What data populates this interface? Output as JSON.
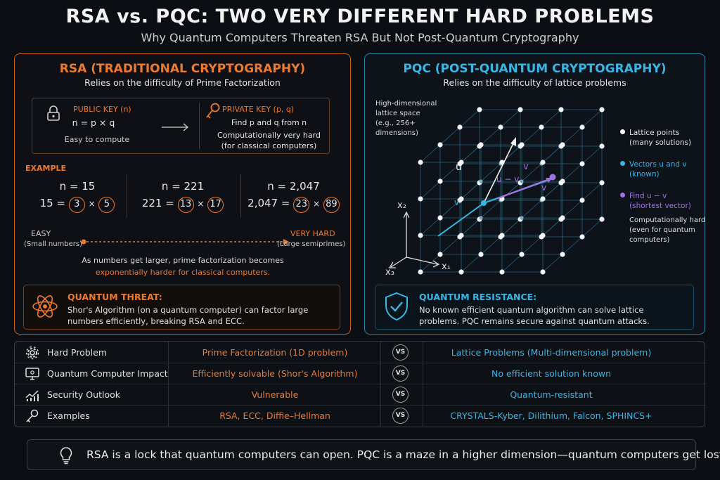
{
  "header": {
    "title": "RSA vs. PQC: TWO VERY DIFFERENT HARD PROBLEMS",
    "subtitle": "Why Quantum Computers Threaten RSA But Not Post-Quantum Cryptography"
  },
  "rsa": {
    "title": "RSA (TRADITIONAL CRYPTOGRAPHY)",
    "description": "Relies on the difficulty of Prime Factorization",
    "public_key": {
      "label": "PUBLIC KEY (n)",
      "formula": "n = p × q",
      "note": "Easy to compute"
    },
    "private_key": {
      "label": "PRIVATE KEY (p, q)",
      "line1": "Find p and q from n",
      "line2": "Computationally very hard",
      "line3": "(for classical computers)"
    },
    "example_label": "EXAMPLE",
    "examples": [
      {
        "n": "n = 15",
        "lhs": "15 =",
        "p": "3",
        "q": "5"
      },
      {
        "n": "n = 221",
        "lhs": "221 =",
        "p": "13",
        "q": "17"
      },
      {
        "n": "n = 2,047",
        "lhs": "2,047 =",
        "p": "23",
        "q": "89"
      }
    ],
    "times": "×",
    "scale": {
      "easy": "EASY",
      "easy_note": "(Small numbers)",
      "hard": "VERY HARD",
      "hard_note": "(Large semiprimes)"
    },
    "growth_line1": "As numbers get larger, prime factorization becomes",
    "growth_line2": "exponentially harder for classical computers.",
    "threat": {
      "title": "QUANTUM THREAT:",
      "line1": "Shor's Algorithm (on a quantum computer) can factor large",
      "line2": "numbers efficiently, breaking RSA and ECC."
    }
  },
  "pqc": {
    "title": "PQC (POST-QUANTUM CRYPTOGRAPHY)",
    "description": "Relies on the difficulty of lattice problems",
    "space_note": [
      "High-dimensional",
      "lattice space",
      "(e.g., 256+",
      "dimensions)"
    ],
    "vectors": {
      "u": "u",
      "v": "v",
      "u_minus_v": "u − v",
      "v2": "v",
      "v_small": "v"
    },
    "axes": {
      "x1": "x₁",
      "x2": "x₂",
      "x3": "x₃"
    },
    "legend": [
      {
        "line1": "Lattice points",
        "line2": "(many solutions)",
        "color": "#ffffff"
      },
      {
        "line1": "Vectors u and v",
        "line2": "(known)",
        "color": "#39b6e6"
      },
      {
        "line1": "Find u − v",
        "line2": "(shortest vector)",
        "color": "#a072e0"
      }
    ],
    "hardness": [
      "Computationally hard",
      "(even for quantum",
      "computers)"
    ],
    "resistance": {
      "title": "QUANTUM RESISTANCE:",
      "line1": "No known efficient quantum algorithm can solve lattice",
      "line2": "problems. PQC remains secure against quantum attacks."
    }
  },
  "comparison": {
    "vs": "VS",
    "rows": [
      {
        "label": "Hard Problem",
        "icon": "gear-icon",
        "rsa": "Prime Factorization (1D problem)",
        "pqc": "Lattice Problems (Multi-dimensional problem)"
      },
      {
        "label": "Quantum Computer Impact",
        "icon": "computer-icon",
        "rsa": "Efficiently solvable (Shor's Algorithm)",
        "pqc": "No efficient solution known"
      },
      {
        "label": "Security Outlook",
        "icon": "chart-icon",
        "rsa": "Vulnerable",
        "pqc": "Quantum-resistant"
      },
      {
        "label": "Examples",
        "icon": "key-icon",
        "rsa": "RSA, ECC, Diffie–Hellman",
        "pqc": "CRYSTALS-Kyber, Dilithium, Falcon, SPHINCS+"
      }
    ]
  },
  "footer": {
    "quote": "RSA is a lock that quantum computers can open.  PQC is a maze in a higher dimension—quantum computers get lost."
  },
  "colors": {
    "rsa_accent": "#ee7a2e",
    "pqc_accent": "#39b6e6",
    "purple": "#a072e0",
    "background": "#0b0e13"
  }
}
